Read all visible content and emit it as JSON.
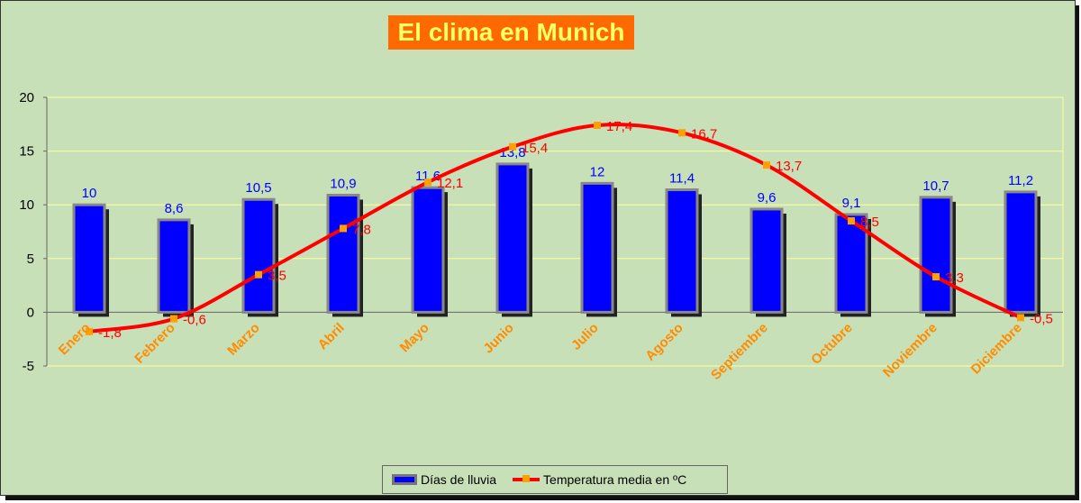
{
  "chart_data": {
    "type": "bar",
    "title": "El clima en Munich",
    "categories": [
      "Enero",
      "Febrero",
      "Marzo",
      "Abril",
      "Mayo",
      "Junio",
      "Julio",
      "Agosto",
      "Septiembre",
      "Octubre",
      "Noviembre",
      "Diciembre"
    ],
    "series": [
      {
        "name": "Días de lluvia",
        "type": "bar",
        "values": [
          10,
          8.6,
          10.5,
          10.9,
          11.6,
          13.8,
          12,
          11.4,
          9.6,
          9.1,
          10.7,
          11.2
        ],
        "labels": [
          "10",
          "8,6",
          "10,5",
          "10,9",
          "11,6",
          "13,8",
          "12",
          "11,4",
          "9,6",
          "9,1",
          "10,7",
          "11,2"
        ]
      },
      {
        "name": "Temperatura media en ºC",
        "type": "line",
        "values": [
          -1.8,
          -0.6,
          3.5,
          7.8,
          12.1,
          15.4,
          17.4,
          16.7,
          13.7,
          8.5,
          3.3,
          -0.5
        ],
        "labels": [
          "-1,8",
          "-0,6",
          "3,5",
          "7,8",
          "12,1",
          "15,4",
          "17,4",
          "16,7",
          "13,7",
          "8,5",
          "3,3",
          "-0,5"
        ]
      }
    ],
    "yticks": [
      "20",
      "15",
      "10",
      "5",
      "0",
      "-5"
    ],
    "ylim": [
      -5,
      20
    ],
    "grid": true,
    "legend": "bottom",
    "colors": {
      "bars": "#0000ff",
      "line": "#ff0000",
      "markers": "#ffa000",
      "category_labels": "#ff8c00",
      "bar_labels": "#0000ff",
      "line_labels": "#ff0000",
      "title_bg": "#ff6a00",
      "title_text": "#ffff66",
      "background": "#c8e0b8"
    }
  }
}
